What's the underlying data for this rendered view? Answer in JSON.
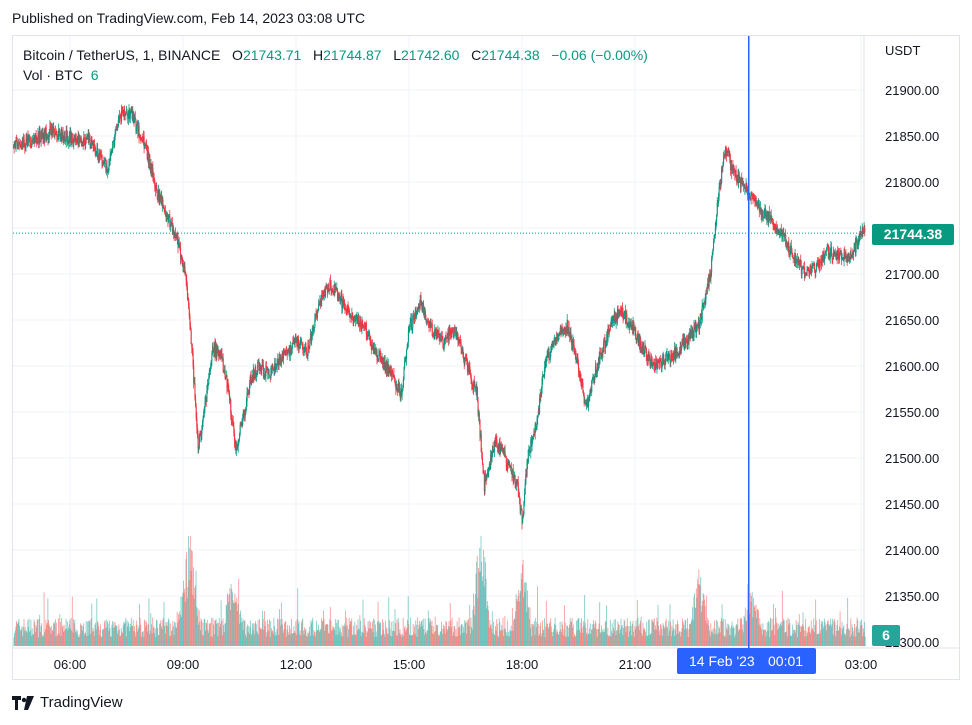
{
  "header": {
    "published": "Published on TradingView.com, Feb 14, 2023 03:08 UTC"
  },
  "legend": {
    "symbol": "Bitcoin / TetherUS, 1, BINANCE",
    "open_label": "O",
    "open": "21743.71",
    "high_label": "H",
    "high": "21744.87",
    "low_label": "L",
    "low": "21742.60",
    "close_label": "C",
    "close": "21744.38",
    "change": "−0.06 (−0.00%)"
  },
  "volume_legend": {
    "label": "Vol · BTC",
    "value": "6"
  },
  "price_badge": "21744.38",
  "volume_badge": "6",
  "crosshair": {
    "date": "14 Feb '23",
    "time": "00:01"
  },
  "footer": {
    "brand": "TradingView"
  },
  "colors": {
    "up": "#089981",
    "down": "#f23645",
    "crosshair": "#2962ff"
  },
  "chart_data": {
    "type": "candlestick",
    "currency": "USDT",
    "y_ticks": [
      "21900.00",
      "21850.00",
      "21800.00",
      "21750.00",
      "21700.00",
      "21650.00",
      "21600.00",
      "21550.00",
      "21500.00",
      "21450.00",
      "21400.00",
      "21350.00",
      "21300.00"
    ],
    "ylim": [
      21300,
      21935
    ],
    "x_ticks": [
      "06:00",
      "09:00",
      "12:00",
      "15:00",
      "18:00",
      "21:00",
      "03:00"
    ],
    "x_tick_hours": [
      6,
      9,
      12,
      15,
      18,
      21,
      27
    ],
    "xlim_hours": [
      4.5,
      27.1
    ],
    "crosshair_hour": 24.02,
    "last_price": 21744.38,
    "price_path": [
      [
        4.5,
        21840
      ],
      [
        5.0,
        21845
      ],
      [
        5.5,
        21855
      ],
      [
        6.0,
        21848
      ],
      [
        6.5,
        21845
      ],
      [
        7.0,
        21815
      ],
      [
        7.3,
        21870
      ],
      [
        7.6,
        21875
      ],
      [
        8.0,
        21840
      ],
      [
        8.3,
        21790
      ],
      [
        8.6,
        21760
      ],
      [
        8.8,
        21745
      ],
      [
        9.05,
        21700
      ],
      [
        9.2,
        21640
      ],
      [
        9.4,
        21510
      ],
      [
        9.6,
        21560
      ],
      [
        9.8,
        21620
      ],
      [
        10.0,
        21610
      ],
      [
        10.2,
        21575
      ],
      [
        10.4,
        21510
      ],
      [
        10.6,
        21545
      ],
      [
        10.8,
        21585
      ],
      [
        11.0,
        21600
      ],
      [
        11.3,
        21590
      ],
      [
        11.6,
        21610
      ],
      [
        12.0,
        21625
      ],
      [
        12.3,
        21615
      ],
      [
        12.6,
        21665
      ],
      [
        12.9,
        21690
      ],
      [
        13.2,
        21670
      ],
      [
        13.5,
        21650
      ],
      [
        13.8,
        21645
      ],
      [
        14.1,
        21615
      ],
      [
        14.4,
        21600
      ],
      [
        14.8,
        21570
      ],
      [
        15.0,
        21640
      ],
      [
        15.3,
        21670
      ],
      [
        15.6,
        21640
      ],
      [
        15.9,
        21625
      ],
      [
        16.2,
        21640
      ],
      [
        16.5,
        21605
      ],
      [
        16.8,
        21570
      ],
      [
        17.0,
        21470
      ],
      [
        17.3,
        21520
      ],
      [
        17.6,
        21495
      ],
      [
        17.9,
        21470
      ],
      [
        18.0,
        21430
      ],
      [
        18.15,
        21500
      ],
      [
        18.4,
        21540
      ],
      [
        18.6,
        21600
      ],
      [
        18.9,
        21630
      ],
      [
        19.2,
        21645
      ],
      [
        19.5,
        21600
      ],
      [
        19.7,
        21555
      ],
      [
        20.0,
        21600
      ],
      [
        20.3,
        21640
      ],
      [
        20.6,
        21660
      ],
      [
        20.9,
        21645
      ],
      [
        21.2,
        21620
      ],
      [
        21.5,
        21600
      ],
      [
        21.8,
        21605
      ],
      [
        22.1,
        21615
      ],
      [
        22.4,
        21630
      ],
      [
        22.7,
        21645
      ],
      [
        23.0,
        21700
      ],
      [
        23.2,
        21780
      ],
      [
        23.4,
        21840
      ],
      [
        23.6,
        21810
      ],
      [
        23.8,
        21800
      ],
      [
        24.0,
        21790
      ],
      [
        24.3,
        21770
      ],
      [
        24.6,
        21760
      ],
      [
        24.9,
        21745
      ],
      [
        25.2,
        21720
      ],
      [
        25.5,
        21700
      ],
      [
        25.8,
        21705
      ],
      [
        26.1,
        21725
      ],
      [
        26.4,
        21720
      ],
      [
        26.7,
        21715
      ],
      [
        27.0,
        21744
      ]
    ],
    "volume_spike_hours": [
      [
        9.2,
        0.95
      ],
      [
        10.3,
        0.55
      ],
      [
        9.0,
        0.35
      ],
      [
        16.9,
        1.0
      ],
      [
        18.0,
        0.62
      ],
      [
        22.7,
        0.55
      ],
      [
        24.1,
        0.35
      ]
    ]
  }
}
